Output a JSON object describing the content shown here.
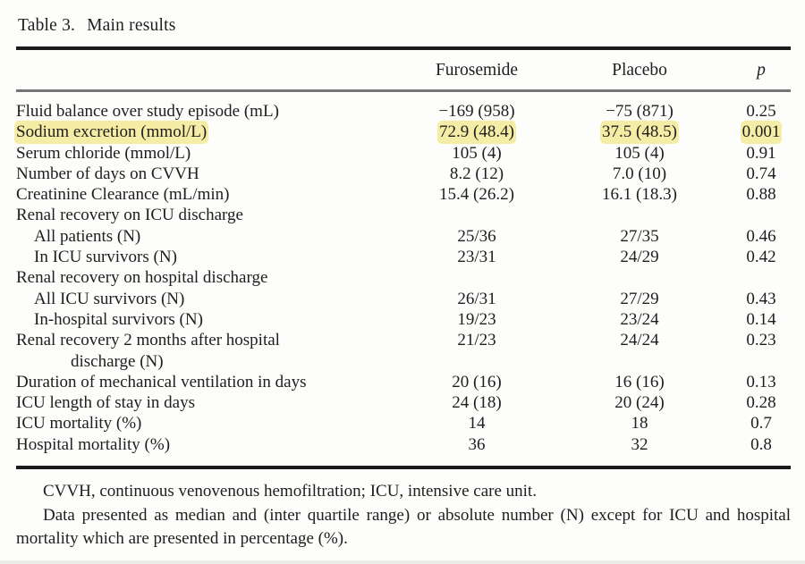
{
  "caption": {
    "label": "Table 3.",
    "title": "Main results"
  },
  "columns": {
    "furosemide": "Furosemide",
    "placebo": "Placebo",
    "p": "p"
  },
  "highlight_color": "#f5eca5",
  "table": {
    "rows": [
      {
        "label": "Fluid balance over study episode (mL)",
        "indent": 0,
        "furosemide": "−169 (958)",
        "placebo": "−75 (871)",
        "p": "0.25",
        "highlight": false
      },
      {
        "label": "Sodium excretion (mmol/L)",
        "indent": 0,
        "furosemide": "72.9 (48.4)",
        "placebo": "37.5 (48.5)",
        "p": "0.001",
        "highlight": true
      },
      {
        "label": "Serum chloride (mmol/L)",
        "indent": 0,
        "furosemide": "105 (4)",
        "placebo": "105 (4)",
        "p": "0.91",
        "highlight": false
      },
      {
        "label": "Number of days on CVVH",
        "indent": 0,
        "furosemide": "8.2 (12)",
        "placebo": "7.0 (10)",
        "p": "0.74",
        "highlight": false
      },
      {
        "label": "Creatinine Clearance (mL/min)",
        "indent": 0,
        "furosemide": "15.4 (26.2)",
        "placebo": "16.1 (18.3)",
        "p": "0.88",
        "highlight": false
      },
      {
        "label": "Renal recovery on ICU discharge",
        "indent": 0,
        "furosemide": "",
        "placebo": "",
        "p": "",
        "highlight": false
      },
      {
        "label": "All patients (N)",
        "indent": 1,
        "furosemide": "25/36",
        "placebo": "27/35",
        "p": "0.46",
        "highlight": false
      },
      {
        "label": "In ICU survivors (N)",
        "indent": 1,
        "furosemide": "23/31",
        "placebo": "24/29",
        "p": "0.42",
        "highlight": false
      },
      {
        "label": "Renal recovery on hospital discharge",
        "indent": 0,
        "furosemide": "",
        "placebo": "",
        "p": "",
        "highlight": false
      },
      {
        "label": "All ICU survivors (N)",
        "indent": 1,
        "furosemide": "26/31",
        "placebo": "27/29",
        "p": "0.43",
        "highlight": false
      },
      {
        "label": "In-hospital survivors (N)",
        "indent": 1,
        "furosemide": "19/23",
        "placebo": "23/24",
        "p": "0.14",
        "highlight": false
      },
      {
        "label": "Renal recovery 2 months after hospital",
        "label2": "discharge (N)",
        "indent": 0,
        "furosemide": "21/23",
        "placebo": "24/24",
        "p": "0.23",
        "highlight": false
      },
      {
        "label": "Duration of mechanical ventilation in days",
        "indent": 0,
        "furosemide": "20 (16)",
        "placebo": "16 (16)",
        "p": "0.13",
        "highlight": false
      },
      {
        "label": "ICU length of stay in days",
        "indent": 0,
        "furosemide": "24 (18)",
        "placebo": "20 (24)",
        "p": "0.28",
        "highlight": false
      },
      {
        "label": "ICU mortality (%)",
        "indent": 0,
        "furosemide": "14",
        "placebo": "18",
        "p": "0.7",
        "highlight": false
      },
      {
        "label": "Hospital mortality (%)",
        "indent": 0,
        "furosemide": "36",
        "placebo": "32",
        "p": "0.8",
        "highlight": false
      }
    ]
  },
  "footnotes": [
    "CVVH, continuous venovenous hemofiltration; ICU, intensive care unit.",
    "Data presented as median and (inter quartile range) or absolute number (N) except for ICU and hospital mortality which are presented in percentage (%)."
  ]
}
